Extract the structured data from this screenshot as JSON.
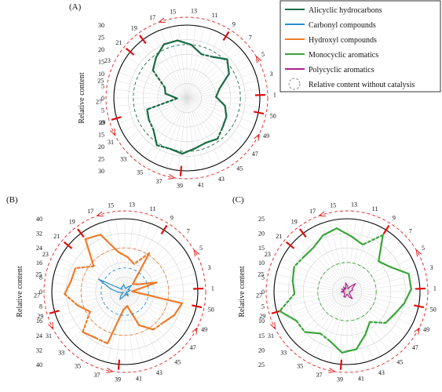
{
  "legend": {
    "items": [
      {
        "label": "Alicyclic hydrocarbons",
        "color": "#1a6b45",
        "style": "solid"
      },
      {
        "label": "Carbonyl compounds",
        "color": "#2b8fc9",
        "style": "solid"
      },
      {
        "label": "Hydroxyl compounds",
        "color": "#f07a28",
        "style": "solid"
      },
      {
        "label": "Monocyclic aromatics",
        "color": "#3aa53a",
        "style": "solid"
      },
      {
        "label": "Polycyclic aromatics",
        "color": "#b0208a",
        "style": "solid"
      },
      {
        "label": "Relative content without catalysis",
        "color": "#888888",
        "style": "dashed-circle"
      }
    ]
  },
  "chart_data": [
    {
      "type": "radar",
      "panel_label": "(A)",
      "ylabel": "Relative content",
      "ylim": [
        0,
        30
      ],
      "radial_ticks": [
        30,
        25,
        20,
        15,
        10,
        5,
        0,
        5,
        10,
        15,
        20,
        25,
        30
      ],
      "spokes": [
        "1",
        "3",
        "5",
        "7",
        "9",
        "11",
        "13",
        "15",
        "17",
        "19",
        "21",
        "23",
        "25",
        "27",
        "29",
        "31",
        "33",
        "35",
        "37",
        "39",
        "41",
        "43",
        "45",
        "47",
        "49",
        "50"
      ],
      "highlighted_spokes": [
        "1",
        "9",
        "19",
        "21",
        "29",
        "39",
        "50"
      ],
      "series": [
        {
          "name": "Alicyclic hydrocarbons",
          "color": "#1a6b45",
          "reference": 22,
          "values": [
            12,
            14,
            20,
            23,
            20,
            19,
            22,
            24,
            24,
            21,
            18,
            10,
            9,
            4,
            17,
            18,
            19,
            23,
            22,
            23,
            21,
            20,
            21,
            19,
            18,
            16
          ],
          "dashed_segments": [
            4,
            10,
            13,
            15,
            17,
            22
          ]
        }
      ]
    },
    {
      "type": "radar",
      "panel_label": "(B)",
      "ylabel": "Relative content",
      "ylim": [
        0,
        40
      ],
      "radial_ticks": [
        40,
        32,
        24,
        16,
        8,
        0,
        8,
        16,
        24,
        32,
        40
      ],
      "spokes": [
        "1",
        "3",
        "5",
        "7",
        "9",
        "11",
        "13",
        "15",
        "17",
        "19",
        "21",
        "23",
        "25",
        "27",
        "29",
        "31",
        "33",
        "35",
        "37",
        "39",
        "41",
        "43",
        "45",
        "47",
        "49",
        "50"
      ],
      "highlighted_spokes": [
        "1",
        "9",
        "19",
        "21",
        "29",
        "39",
        "50"
      ],
      "series": [
        {
          "name": "Hydroxyl compounds",
          "color": "#f07a28",
          "reference": 24,
          "values": [
            4,
            18,
            8,
            6,
            25,
            16,
            19,
            22,
            34,
            36,
            22,
            30,
            30,
            33,
            27,
            22,
            32,
            30,
            30,
            10,
            8,
            20,
            26,
            27,
            30,
            32
          ],
          "dashed_segments": [
            4,
            10,
            13,
            15,
            17,
            22
          ]
        },
        {
          "name": "Carbonyl compounds",
          "color": "#2b8fc9",
          "reference": 13,
          "values": [
            2,
            3,
            2,
            5,
            3,
            2,
            2,
            4,
            3,
            3,
            2,
            16,
            8,
            4,
            2,
            1,
            3,
            5,
            3,
            2,
            2,
            1,
            3,
            2,
            1,
            1
          ],
          "dashed_segments": []
        }
      ]
    },
    {
      "type": "radar",
      "panel_label": "(C)",
      "ylabel": "Relative content",
      "ylim": [
        0,
        25
      ],
      "radial_ticks": [
        25,
        20,
        15,
        10,
        5,
        0,
        5,
        10,
        15,
        20,
        25
      ],
      "spokes": [
        "1",
        "3",
        "5",
        "7",
        "9",
        "11",
        "13",
        "15",
        "17",
        "19",
        "21",
        "23",
        "25",
        "27",
        "29",
        "31",
        "33",
        "35",
        "37",
        "39",
        "41",
        "43",
        "45",
        "47",
        "49",
        "50"
      ],
      "highlighted_spokes": [
        "1",
        "9",
        "19",
        "21",
        "29",
        "39",
        "50"
      ],
      "series": [
        {
          "name": "Monocyclic aromatics",
          "color": "#3aa53a",
          "reference": 10,
          "values": [
            22,
            22,
            17,
            15,
            23,
            17,
            19,
            22,
            21,
            19,
            19,
            20,
            19,
            18,
            24,
            20,
            20,
            17,
            18,
            21,
            20,
            16,
            13,
            17,
            18,
            20
          ],
          "dashed_segments": [
            4,
            10,
            13,
            15,
            17,
            22
          ]
        },
        {
          "name": "Polycyclic aromatics",
          "color": "#b0208a",
          "reference": 0,
          "values": [
            1,
            2,
            2,
            4,
            2,
            1,
            2,
            3,
            1,
            2,
            1,
            2,
            1,
            2,
            1,
            1,
            1,
            2,
            2,
            1,
            1,
            2,
            3,
            1,
            1,
            1
          ],
          "dashed_segments": []
        }
      ]
    }
  ]
}
